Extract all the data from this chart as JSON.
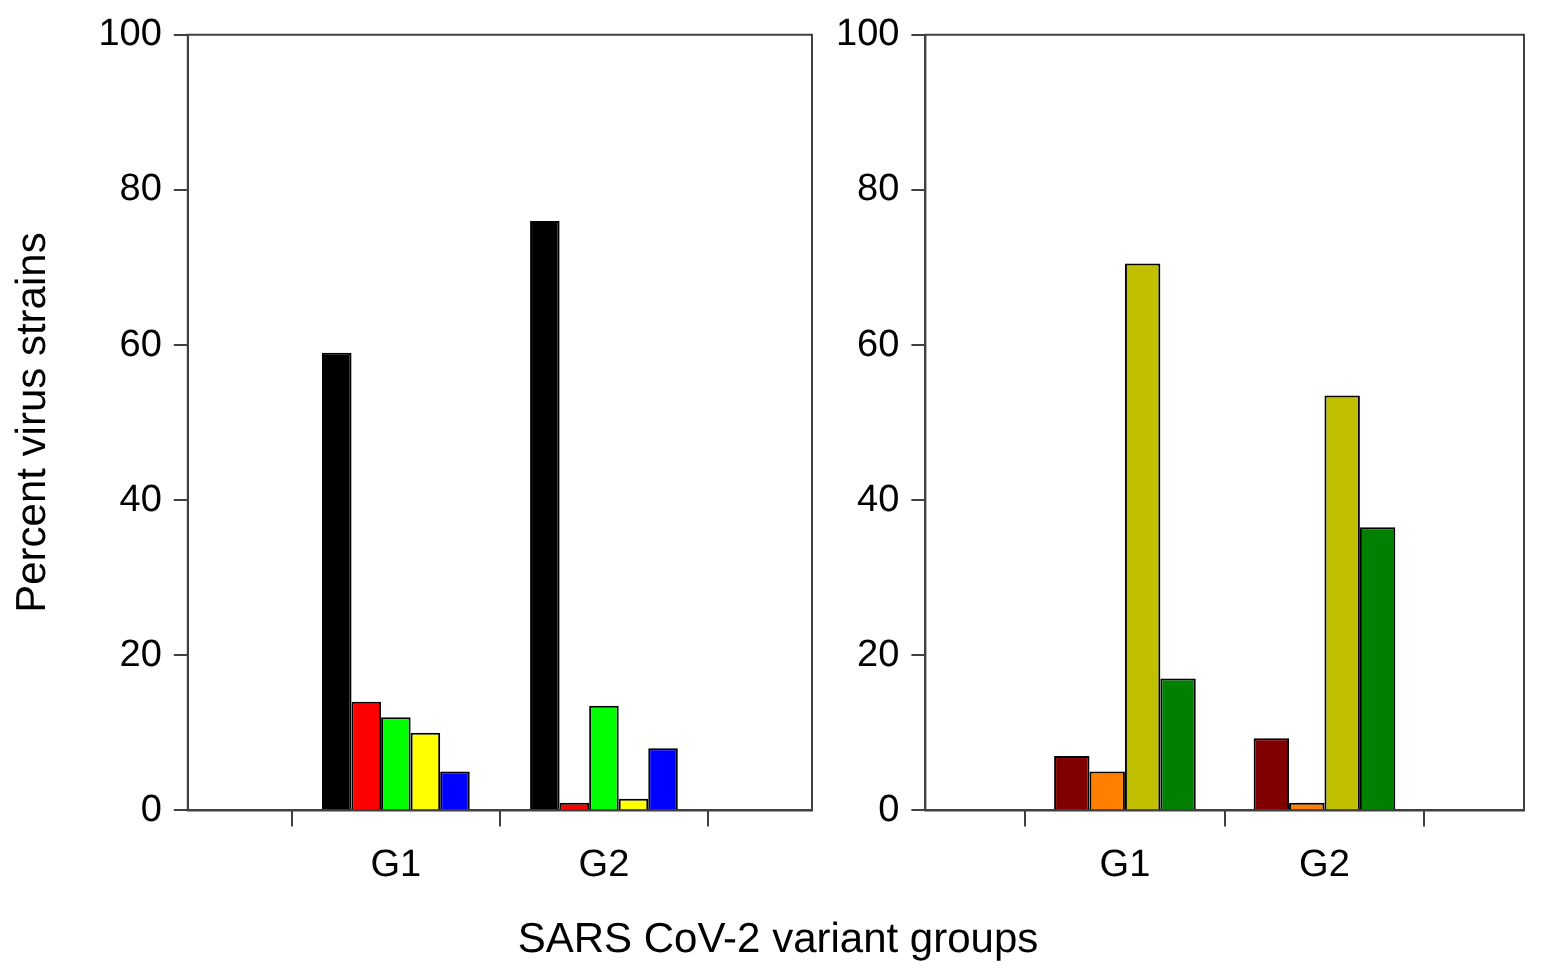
{
  "chart_data": [
    {
      "type": "bar",
      "ylabel": "Percent virus strains",
      "xlabel": "SARS CoV-2 variant groups",
      "categories": [
        "G1",
        "G2"
      ],
      "series": [
        {
          "color": "#000000",
          "values": [
            59,
            76
          ]
        },
        {
          "color": "#ff0000",
          "values": [
            14,
            1
          ]
        },
        {
          "color": "#00ff00",
          "values": [
            12,
            13.5
          ]
        },
        {
          "color": "#ffff00",
          "values": [
            10,
            1.5
          ]
        },
        {
          "color": "#0000ff",
          "values": [
            5,
            8
          ]
        }
      ],
      "ylim": [
        0,
        100
      ],
      "yticks": [
        0,
        20,
        40,
        60,
        80,
        100
      ],
      "grid": false,
      "legend": false
    },
    {
      "type": "bar",
      "categories": [
        "G1",
        "G2"
      ],
      "series": [
        {
          "color": "#800000",
          "values": [
            7,
            9.3
          ]
        },
        {
          "color": "#ff8000",
          "values": [
            5,
            1
          ]
        },
        {
          "color": "#c0c000",
          "values": [
            70.5,
            53.5
          ]
        },
        {
          "color": "#008000",
          "values": [
            17,
            36.5
          ]
        }
      ],
      "ylim": [
        0,
        100
      ],
      "yticks": [
        0,
        20,
        40,
        60,
        80,
        100
      ],
      "grid": false,
      "legend": false
    }
  ]
}
